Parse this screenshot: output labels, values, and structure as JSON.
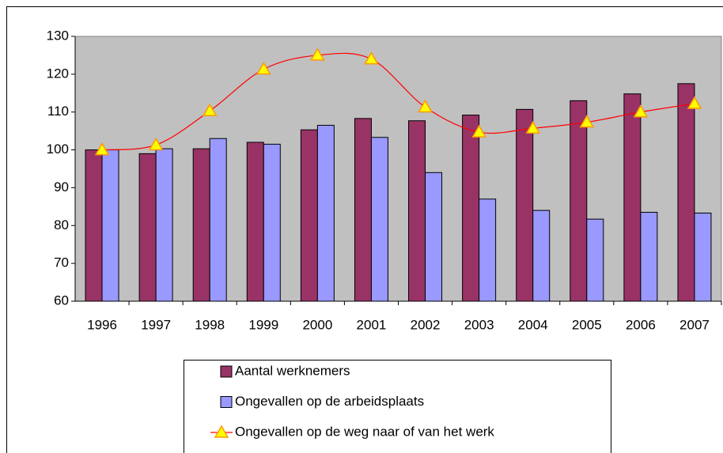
{
  "chart_data": {
    "type": "bar-line",
    "categories": [
      "1996",
      "1997",
      "1998",
      "1999",
      "2000",
      "2001",
      "2002",
      "2003",
      "2004",
      "2005",
      "2006",
      "2007"
    ],
    "series": [
      {
        "name": "Aantal werknemers",
        "type": "bar",
        "color": "#993366",
        "values": [
          100,
          99,
          100.3,
          102,
          105.3,
          108.3,
          107.7,
          109.2,
          110.7,
          113,
          114.8,
          117.5
        ]
      },
      {
        "name": "Ongevallen op de arbeidsplaats",
        "type": "bar",
        "color": "#9999ff",
        "values": [
          100,
          100.3,
          103,
          101.5,
          106.5,
          103.3,
          94,
          87,
          84,
          81.7,
          83.5,
          83.3
        ]
      },
      {
        "name": "Ongevallen op de weg naar of van het werk",
        "type": "line",
        "color": "#ff0000",
        "marker_color": "#ffff00",
        "values": [
          100,
          101.3,
          110.3,
          121.3,
          125,
          124,
          111.3,
          104.7,
          105.7,
          107.3,
          110,
          112.2
        ]
      }
    ],
    "ylim": [
      60,
      130
    ],
    "yticks": [
      60,
      70,
      80,
      90,
      100,
      110,
      120,
      130
    ],
    "plot_background": "#c0c0c0",
    "grid": false,
    "legend": "bottom"
  }
}
